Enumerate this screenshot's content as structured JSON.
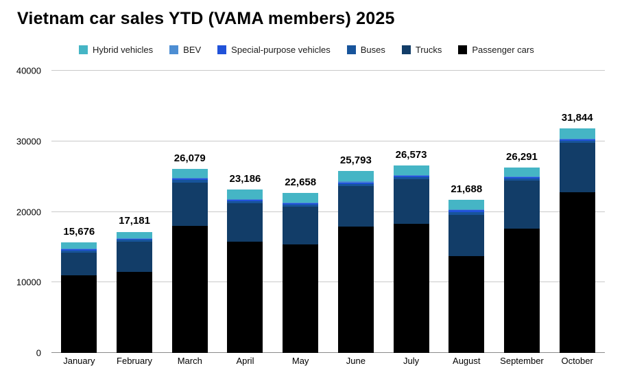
{
  "chart_data": {
    "type": "bar",
    "stacked": true,
    "title": "Vietnam car sales YTD (VAMA members) 2025",
    "categories": [
      "January",
      "February",
      "March",
      "April",
      "May",
      "June",
      "July",
      "August",
      "September",
      "October"
    ],
    "totals": [
      15676,
      17181,
      26079,
      23186,
      22658,
      25793,
      26573,
      21688,
      26291,
      31844
    ],
    "totals_formatted": [
      "15,676",
      "17,181",
      "26,079",
      "23,186",
      "22,658",
      "25,793",
      "26,573",
      "21,688",
      "26,291",
      "31,844"
    ],
    "series": [
      {
        "name": "Passenger cars",
        "color": "#000000",
        "values": [
          11000,
          11500,
          18000,
          15800,
          15400,
          17900,
          18300,
          13700,
          17600,
          22800
        ]
      },
      {
        "name": "Trucks",
        "color": "#123d68",
        "values": [
          3250,
          4250,
          6150,
          5400,
          5300,
          5750,
          6300,
          5900,
          6850,
          6950
        ]
      },
      {
        "name": "Buses",
        "color": "#17549b",
        "values": [
          300,
          280,
          330,
          330,
          330,
          330,
          330,
          350,
          300,
          350
        ]
      },
      {
        "name": "Special-purpose vehicles",
        "color": "#2152d9",
        "values": [
          150,
          150,
          200,
          200,
          200,
          200,
          200,
          250,
          200,
          200
        ]
      },
      {
        "name": "BEV",
        "color": "#4d8ed3",
        "values": [
          76,
          81,
          99,
          106,
          98,
          113,
          103,
          108,
          101,
          114
        ]
      },
      {
        "name": "Hybrid vehicles",
        "color": "#45b5c5",
        "values": [
          900,
          920,
          1300,
          1350,
          1330,
          1500,
          1340,
          1380,
          1240,
          1430
        ]
      }
    ],
    "legend_order": [
      "Hybrid vehicles",
      "BEV",
      "Special-purpose vehicles",
      "Buses",
      "Trucks",
      "Passenger cars"
    ],
    "legend_position": "top",
    "grid": true,
    "ylim": [
      0,
      40000
    ],
    "yticks": [
      0,
      10000,
      20000,
      30000,
      40000
    ],
    "ytick_labels": [
      "0",
      "10000",
      "20000",
      "30000",
      "40000"
    ]
  }
}
